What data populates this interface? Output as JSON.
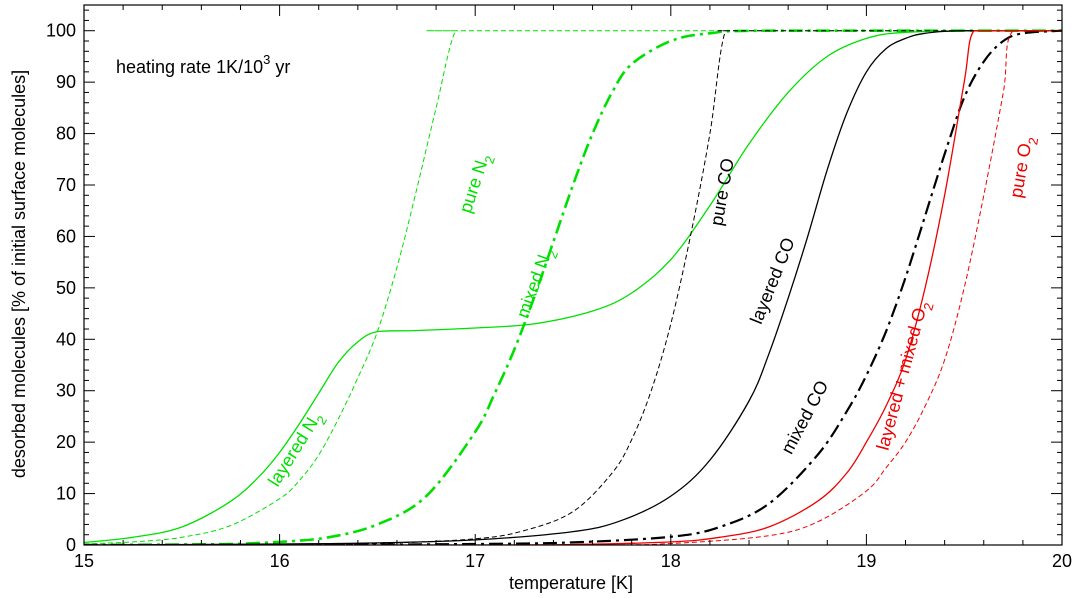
{
  "chart_data": {
    "type": "line",
    "annotation": {
      "text": "heating rate 1K/10",
      "sup": "3",
      "tail": " yr"
    },
    "xlabel": "temperature [K]",
    "ylabel": "desorbed molecules [% of initial surface molecules]",
    "xlim": [
      15,
      20
    ],
    "ylim": [
      0,
      105
    ],
    "xticks": [
      "15",
      "16",
      "17",
      "18",
      "19",
      "20"
    ],
    "yticks": [
      "0",
      "10",
      "20",
      "30",
      "40",
      "50",
      "60",
      "70",
      "80",
      "90",
      "100"
    ],
    "grid": false,
    "colors": {
      "green": "#00e000",
      "black": "#000000",
      "red": "#ee0000"
    },
    "series": [
      {
        "label_parts": [
          "layered N",
          "2",
          ""
        ],
        "color": "#00e000",
        "dash": "solid",
        "width": 1.3,
        "x": [
          15.0,
          15.25,
          15.5,
          15.75,
          15.9,
          16.0,
          16.1,
          16.2,
          16.3,
          16.4,
          16.5,
          16.7,
          17.0,
          17.3,
          17.6,
          17.8,
          18.0,
          18.2,
          18.4,
          18.6,
          18.8,
          19.0,
          19.2,
          19.6,
          20.0
        ],
        "y": [
          0.5,
          1.5,
          3.5,
          8.5,
          13.5,
          18.0,
          23.5,
          29.5,
          35.5,
          39.5,
          41.5,
          41.7,
          42.2,
          43.0,
          45.5,
          49.0,
          55.5,
          66.0,
          78.0,
          88.0,
          95.0,
          98.5,
          99.7,
          100,
          100
        ]
      },
      {
        "label_parts": [
          "pure N",
          "2",
          ""
        ],
        "color": "#00e000",
        "dash": "dashed",
        "width": 1.0,
        "x": [
          15.0,
          15.25,
          15.5,
          15.75,
          16.0,
          16.1,
          16.2,
          16.3,
          16.4,
          16.5,
          16.6,
          16.7,
          16.8,
          16.9,
          17.0,
          20.0
        ],
        "y": [
          0.2,
          0.6,
          1.5,
          3.8,
          9.0,
          12.5,
          17.5,
          24.5,
          32.5,
          41.5,
          54.0,
          69.0,
          85.0,
          100,
          100,
          100
        ]
      },
      {
        "label_parts": [
          "mixed N",
          "2",
          ""
        ],
        "color": "#00e000",
        "dash": "dashdot",
        "width": 2.6,
        "x": [
          15.0,
          15.5,
          15.75,
          16.0,
          16.25,
          16.5,
          16.75,
          17.0,
          17.1,
          17.2,
          17.3,
          17.4,
          17.5,
          17.6,
          17.7,
          17.8,
          18.0,
          18.2,
          18.5,
          20.0
        ],
        "y": [
          0,
          0.1,
          0.2,
          0.6,
          1.5,
          4.0,
          9.5,
          22.0,
          29.5,
          38.0,
          48.0,
          59.0,
          70.0,
          80.0,
          88.0,
          93.5,
          98.0,
          99.5,
          100,
          100
        ]
      },
      {
        "label_parts": [
          "pure CO",
          "",
          ""
        ],
        "color": "#000000",
        "dash": "dashed",
        "width": 1.0,
        "x": [
          15.0,
          16.0,
          16.5,
          17.0,
          17.25,
          17.5,
          17.7,
          17.8,
          17.9,
          18.0,
          18.1,
          18.2,
          18.28,
          18.4,
          20.0
        ],
        "y": [
          0,
          0.1,
          0.3,
          1.2,
          2.8,
          6.5,
          14.0,
          20.5,
          30.0,
          43.0,
          60.0,
          80.0,
          100,
          100,
          100
        ]
      },
      {
        "label_parts": [
          "layered CO",
          "",
          ""
        ],
        "color": "#000000",
        "dash": "solid",
        "width": 1.3,
        "x": [
          15.0,
          16.0,
          16.5,
          17.0,
          17.5,
          17.75,
          18.0,
          18.2,
          18.4,
          18.5,
          18.6,
          18.7,
          18.8,
          18.9,
          19.0,
          19.1,
          19.2,
          19.3,
          19.5,
          20.0
        ],
        "y": [
          0,
          0.2,
          0.4,
          1.0,
          2.6,
          4.8,
          9.5,
          16.5,
          28.0,
          37.0,
          48.0,
          60.0,
          73.0,
          84.0,
          92.0,
          96.5,
          98.5,
          99.5,
          100,
          100
        ]
      },
      {
        "label_parts": [
          "mixed CO",
          "",
          ""
        ],
        "color": "#000000",
        "dash": "dashdot",
        "width": 2.2,
        "x": [
          15.0,
          16.0,
          17.0,
          17.5,
          18.0,
          18.25,
          18.5,
          18.75,
          18.9,
          19.0,
          19.1,
          19.2,
          19.3,
          19.4,
          19.5,
          19.6,
          19.7,
          19.8,
          20.0
        ],
        "y": [
          0,
          0,
          0.2,
          0.5,
          1.6,
          3.5,
          8.0,
          17.5,
          26.0,
          33.0,
          41.5,
          52.0,
          64.0,
          76.0,
          87.0,
          94.0,
          98.0,
          99.5,
          100
        ]
      },
      {
        "label_parts": [
          "layered + mixed O",
          "2",
          ""
        ],
        "color": "#ee0000",
        "dash": "solid",
        "width": 1.3,
        "x": [
          15.0,
          17.0,
          17.5,
          18.0,
          18.25,
          18.5,
          18.75,
          18.9,
          19.0,
          19.1,
          19.2,
          19.3,
          19.4,
          19.5,
          19.55,
          19.7,
          20.0
        ],
        "y": [
          0,
          0,
          0.1,
          0.6,
          1.5,
          3.5,
          8.5,
          14.0,
          20.0,
          27.0,
          36.0,
          50.0,
          68.0,
          90.0,
          100,
          100,
          100
        ]
      },
      {
        "label_parts": [
          "pure O",
          "2",
          ""
        ],
        "color": "#ee0000",
        "dash": "dashed",
        "width": 1.0,
        "x": [
          15.0,
          17.5,
          18.0,
          18.5,
          18.75,
          19.0,
          19.1,
          19.2,
          19.3,
          19.4,
          19.5,
          19.6,
          19.7,
          19.75,
          20.0
        ],
        "y": [
          0,
          0,
          0.3,
          1.8,
          4.5,
          10.5,
          15.0,
          20.0,
          27.0,
          36.0,
          50.0,
          68.0,
          88.0,
          100,
          100
        ]
      }
    ]
  }
}
